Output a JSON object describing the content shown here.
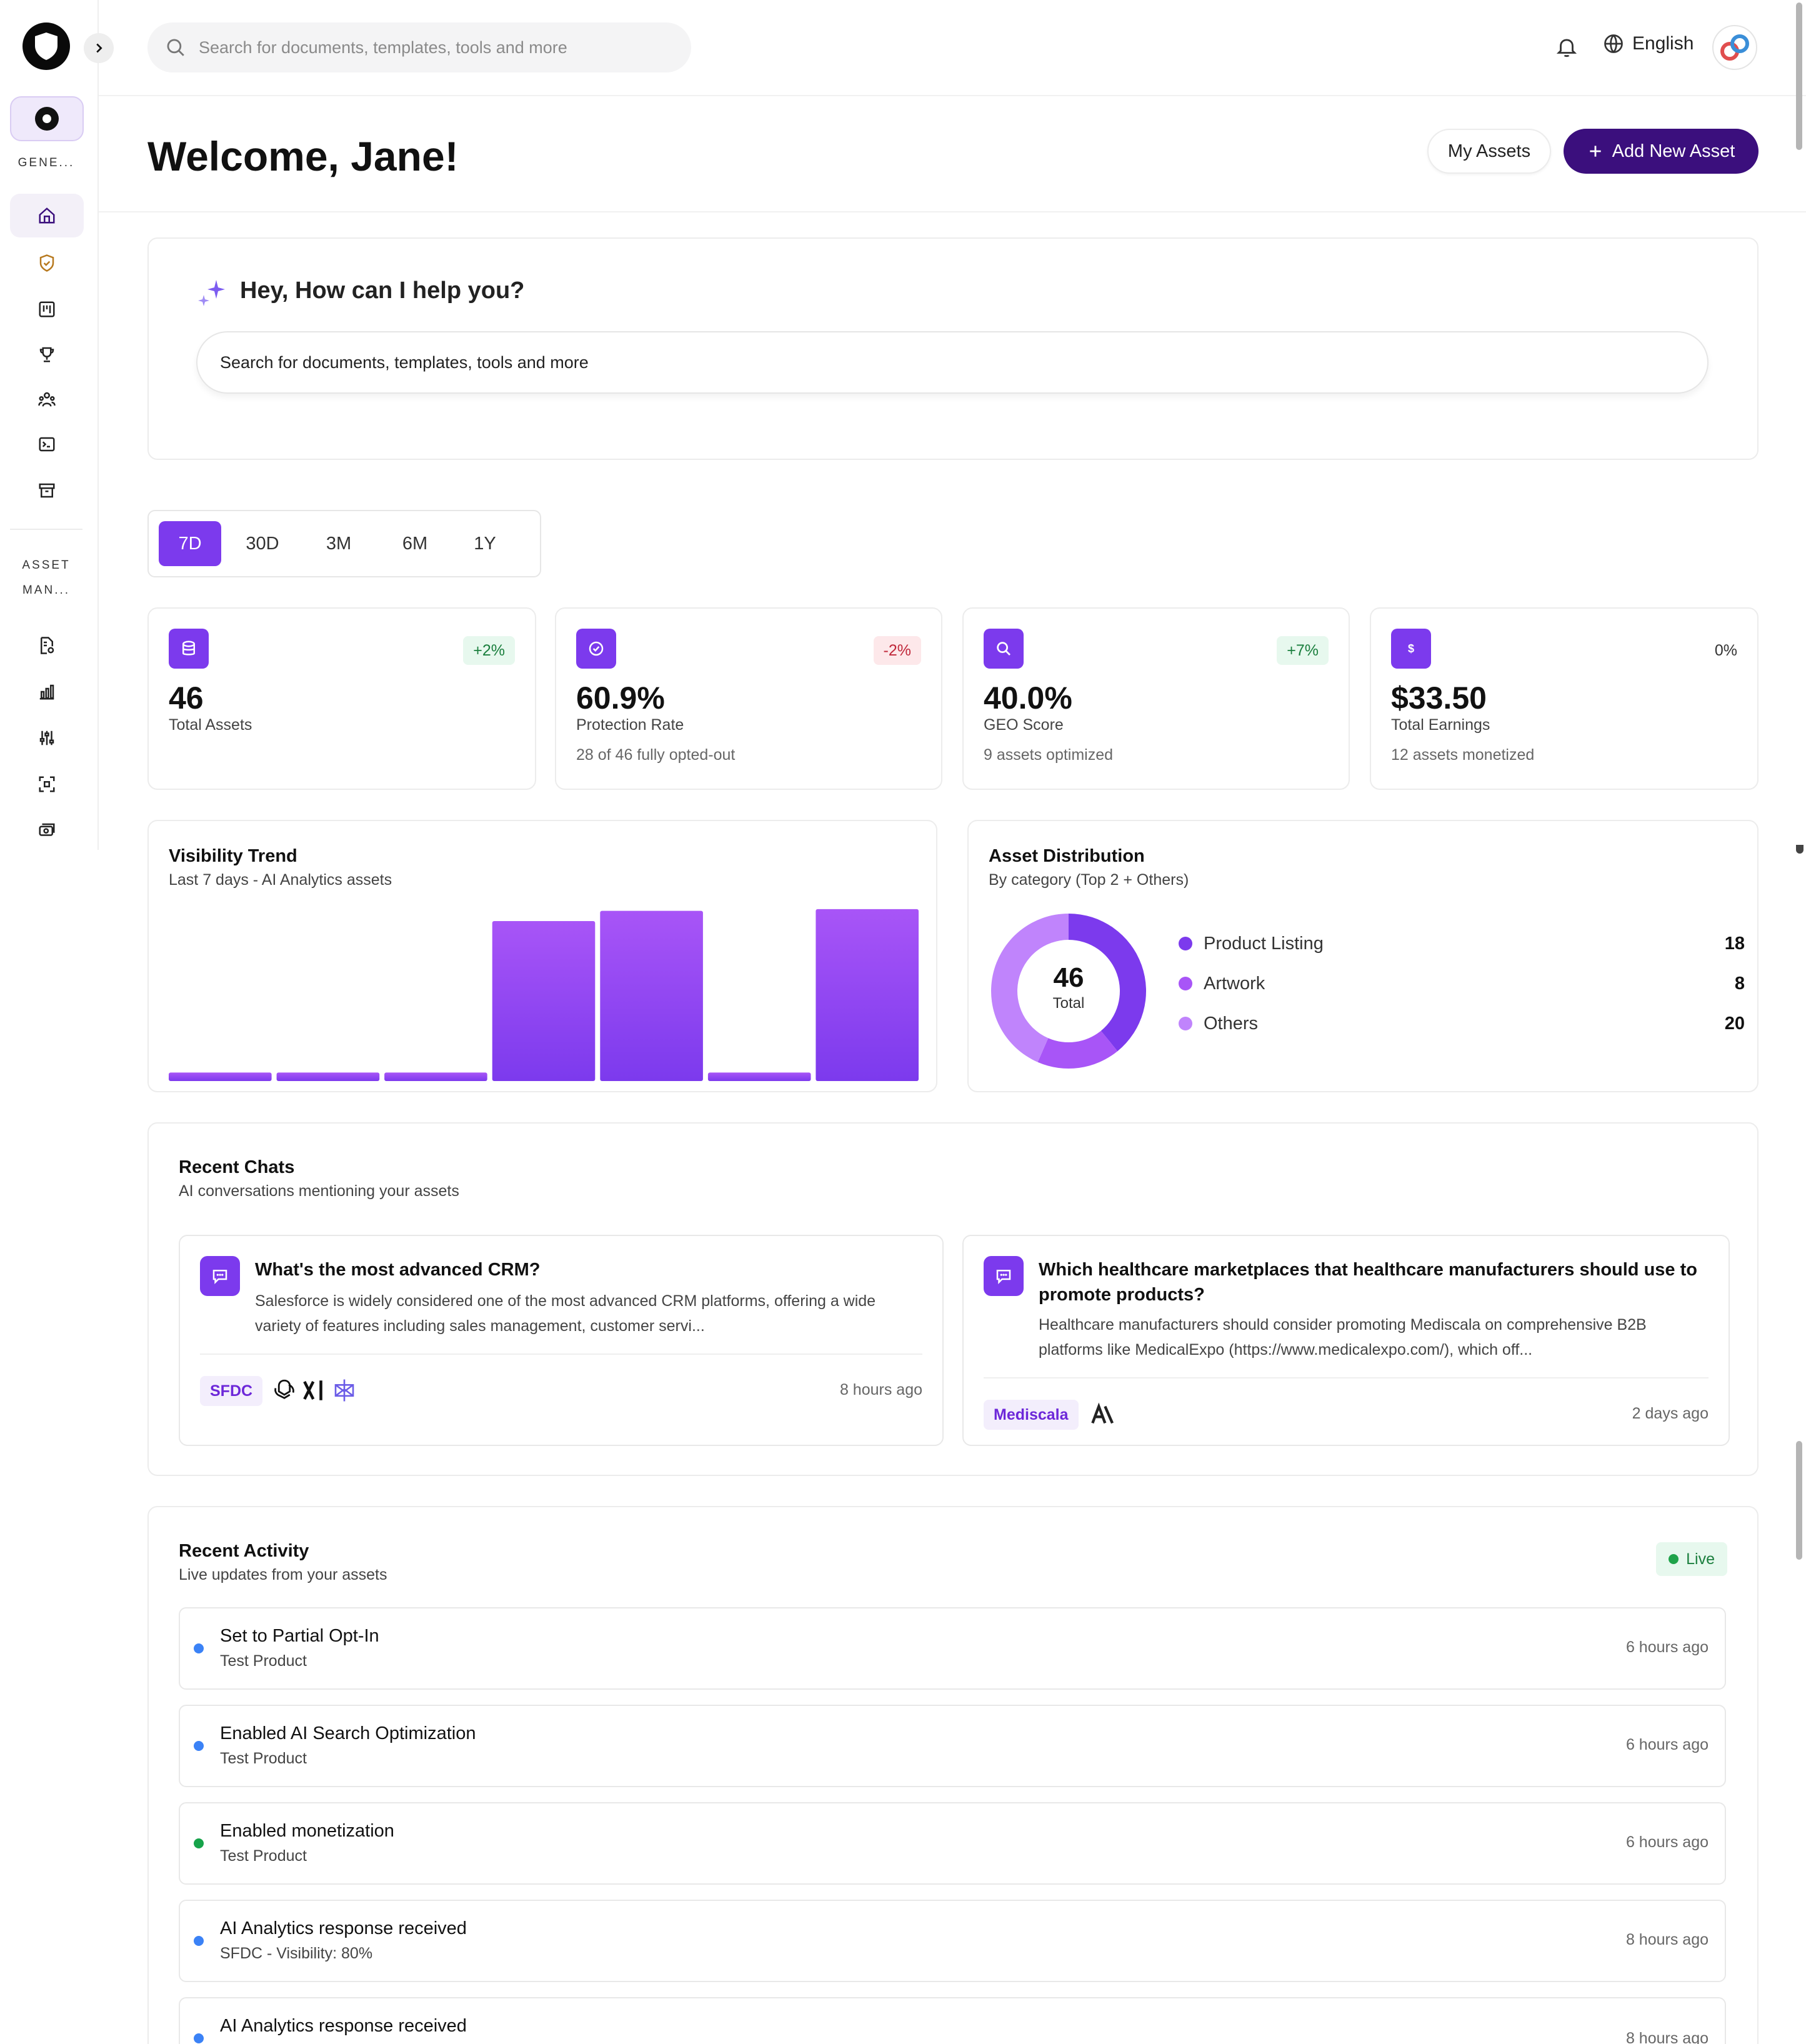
{
  "sidebar": {
    "section_general": "GENE...",
    "section_asset_line1": "ASSET",
    "section_asset_line2": "MAN..."
  },
  "topbar": {
    "search_placeholder": "Search for documents, templates, tools and more",
    "language": "English"
  },
  "header": {
    "welcome": "Welcome, Jane!",
    "my_assets_label": "My Assets",
    "add_asset_label": "Add New Asset"
  },
  "assistant": {
    "title": "Hey, How can I help you?",
    "input_placeholder": "Search for documents, templates, tools and more"
  },
  "range_tabs": [
    "7D",
    "30D",
    "3M",
    "6M",
    "1Y"
  ],
  "range_selected": "7D",
  "stats": [
    {
      "value": "46",
      "label": "Total Assets",
      "sub": "",
      "badge": "+2%",
      "trend": "up",
      "icon": "database-icon"
    },
    {
      "value": "60.9%",
      "label": "Protection Rate",
      "sub": "28 of 46 fully opted-out",
      "badge": "-2%",
      "trend": "down",
      "icon": "check-circle-icon"
    },
    {
      "value": "40.0%",
      "label": "GEO Score",
      "sub": "9 assets optimized",
      "badge": "+7%",
      "trend": "up",
      "icon": "search-icon"
    },
    {
      "value": "$33.50",
      "label": "Total Earnings",
      "sub": "12 assets monetized",
      "badge": "0%",
      "trend": "none",
      "icon": "dollar-icon"
    }
  ],
  "visibility_trend": {
    "title": "Visibility Trend",
    "subtitle": "Last 7 days - AI Analytics assets"
  },
  "asset_distribution": {
    "title": "Asset Distribution",
    "subtitle": "By category (Top 2 + Others)",
    "total": "46",
    "total_label": "Total"
  },
  "chart_data": [
    {
      "type": "bar",
      "title": "Visibility Trend",
      "subtitle": "Last 7 days - AI Analytics assets",
      "categories": [
        "",
        "",
        "",
        "",
        "",
        "",
        ""
      ],
      "values": [
        0.05,
        0.05,
        0.05,
        0.94,
        1.0,
        0.05,
        1.01
      ],
      "ylim": [
        0,
        1.05
      ],
      "grid": false,
      "colors": [
        "#a855f7",
        "#7c3aed"
      ]
    },
    {
      "type": "pie",
      "title": "Asset Distribution",
      "subtitle": "By category (Top 2 + Others)",
      "categories": [
        "Product Listing",
        "Artwork",
        "Others"
      ],
      "values": [
        18,
        8,
        20
      ],
      "colors": [
        "#7c3aed",
        "#a855f7",
        "#c084fc"
      ],
      "donut": true,
      "legend": "right"
    }
  ],
  "recent_chats": {
    "title": "Recent Chats",
    "subtitle": "AI conversations mentioning your assets",
    "items": [
      {
        "question": "What's the most advanced CRM?",
        "answer": "Salesforce is widely considered one of the most advanced CRM platforms, offering a wide variety of features including sales management, customer servi...",
        "tag": "SFDC",
        "time": "8 hours ago"
      },
      {
        "question": "Which healthcare marketplaces that healthcare manufacturers should use to promote products?",
        "answer": "Healthcare manufacturers should consider promoting Mediscala on comprehensive B2B platforms like MedicalExpo (https://www.medicalexpo.com/), which off...",
        "tag": "Mediscala",
        "time": "2 days ago"
      }
    ]
  },
  "recent_activity": {
    "title": "Recent Activity",
    "subtitle": "Live updates from your assets",
    "live_label": "Live",
    "items": [
      {
        "title": "Set to Partial Opt-In",
        "sub": "Test Product",
        "time": "6 hours ago",
        "color": "#3b82f6"
      },
      {
        "title": "Enabled AI Search Optimization",
        "sub": "Test Product",
        "time": "6 hours ago",
        "color": "#3b82f6"
      },
      {
        "title": "Enabled monetization",
        "sub": "Test Product",
        "time": "6 hours ago",
        "color": "#16a34a"
      },
      {
        "title": "AI Analytics response received",
        "sub": "SFDC - Visibility: 80%",
        "time": "8 hours ago",
        "color": "#3b82f6"
      },
      {
        "title": "AI Analytics response received",
        "sub": "",
        "time": "8 hours ago",
        "color": "#3b82f6"
      }
    ]
  },
  "colors": {
    "accent": "#7c3aed",
    "primary_button": "#3b0f7d"
  }
}
